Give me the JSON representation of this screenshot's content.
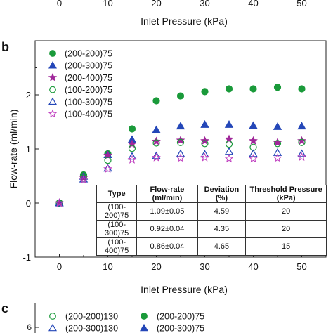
{
  "panel_labels": {
    "b": "b",
    "c": "c"
  },
  "top_axis": {
    "xlabel": "Inlet Pressure (kPa)",
    "ticks": [
      "0",
      "10",
      "20",
      "30",
      "40",
      "50"
    ]
  },
  "panel_c": {
    "y_tick": "6",
    "legend": [
      {
        "name": "(200-200)130",
        "marker": "circle-open",
        "color": "#1a9a3a"
      },
      {
        "name": "(200-200)75",
        "marker": "circle-filled",
        "color": "#1a9a3a"
      },
      {
        "name": "(200-300)130",
        "marker": "triangle-open",
        "color": "#2447b8"
      },
      {
        "name": "(200-300)75",
        "marker": "triangle-filled",
        "color": "#2447b8"
      }
    ]
  },
  "table": {
    "headers": [
      "Type",
      "Flow-rate (ml/min)",
      "Deviation (%)",
      "Threshold Pressure (kPa)"
    ],
    "rows": [
      [
        "(100-200)75",
        "1.09±0.05",
        "4.59",
        "20"
      ],
      [
        "(100-300)75",
        "0.92±0.04",
        "4.35",
        "20"
      ],
      [
        "(100-400)75",
        "0.86±0.04",
        "4.65",
        "15"
      ]
    ]
  },
  "chart_data": {
    "type": "scatter",
    "title": "",
    "xlabel": "Inlet Pressure (kPa)",
    "ylabel": "Flow-rate (ml/min)",
    "xlim": [
      -5,
      55
    ],
    "ylim": [
      -1,
      3
    ],
    "xticks": [
      0,
      10,
      20,
      30,
      40,
      50
    ],
    "yticks": [
      -1,
      0,
      1,
      2
    ],
    "grid": false,
    "legend_position": "top-left",
    "x": [
      0,
      5,
      10,
      15,
      20,
      25,
      30,
      35,
      40,
      45,
      50
    ],
    "series": [
      {
        "name": "(200-200)75",
        "marker": "circle-filled",
        "color": "#1a9a3a",
        "values": [
          0,
          0.52,
          0.91,
          1.37,
          1.89,
          1.98,
          2.06,
          2.11,
          2.11,
          2.14,
          2.11
        ]
      },
      {
        "name": "(200-300)75",
        "marker": "triangle-filled",
        "color": "#2447b8",
        "values": [
          0,
          0.49,
          0.89,
          1.17,
          1.35,
          1.42,
          1.45,
          1.45,
          1.43,
          1.41,
          1.42
        ]
      },
      {
        "name": "(200-400)75",
        "marker": "star-filled",
        "color": "#a0289a",
        "values": [
          0,
          0.47,
          0.88,
          1.09,
          1.14,
          1.16,
          1.15,
          1.18,
          1.15,
          1.12,
          1.15
        ]
      },
      {
        "name": "(100-200)75",
        "marker": "circle-open",
        "color": "#1a9a3a",
        "values": [
          0,
          0.46,
          0.79,
          1.01,
          1.11,
          1.12,
          1.1,
          1.09,
          1.03,
          1.1,
          1.12
        ]
      },
      {
        "name": "(100-300)75",
        "marker": "triangle-open",
        "color": "#2447b8",
        "values": [
          0,
          0.44,
          0.64,
          0.86,
          0.87,
          0.91,
          0.9,
          0.95,
          0.91,
          0.93,
          0.91
        ]
      },
      {
        "name": "(100-400)75",
        "marker": "star-open",
        "color": "#c040c0",
        "values": [
          0,
          0.43,
          0.63,
          0.8,
          0.84,
          0.83,
          0.84,
          0.82,
          0.82,
          0.83,
          0.85
        ]
      }
    ]
  }
}
